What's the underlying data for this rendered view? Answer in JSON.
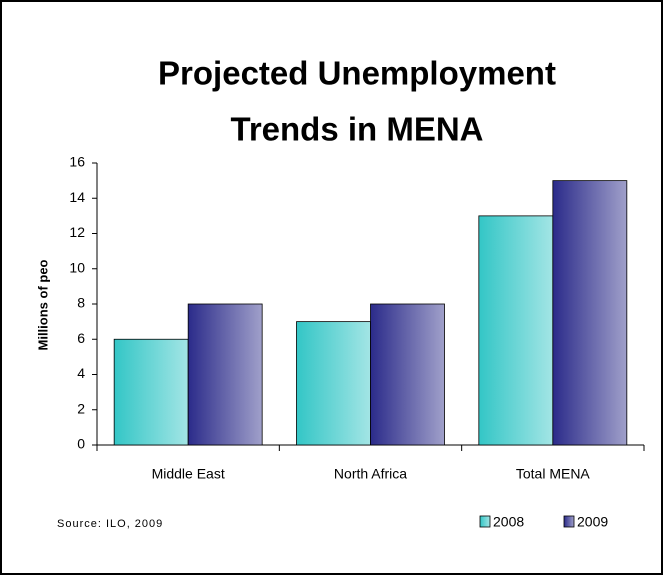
{
  "chart_data": {
    "type": "bar",
    "title": [
      "Projected Unemployment",
      "Trends in MENA"
    ],
    "y_label": "Millions of peo",
    "categories": [
      "Middle East",
      "North Africa",
      "Total MENA"
    ],
    "series": [
      {
        "name": "2008",
        "color": "#33c6c6",
        "values": [
          6,
          7,
          13
        ]
      },
      {
        "name": "2009",
        "color": "#2b2b8a",
        "values": [
          8,
          8,
          15
        ]
      }
    ],
    "ylim": [
      0,
      16
    ],
    "yticks": [
      0,
      2,
      4,
      6,
      8,
      10,
      12,
      14,
      16
    ],
    "source": "Source: ILO, 2009"
  }
}
